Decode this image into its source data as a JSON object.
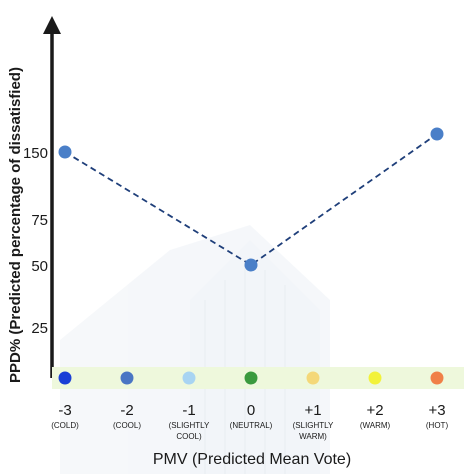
{
  "chart_data": {
    "type": "line",
    "ylabel": "PPD% (Predicted percentage of dissatisfied)",
    "xlabel": "PMV (Predicted Mean Vote)",
    "y_ticks": [
      "150",
      "75",
      "50",
      "25"
    ],
    "x_ticks": [
      {
        "value": "-3",
        "sub1": "(COLD)",
        "sub2": ""
      },
      {
        "value": "-2",
        "sub1": "(COOL)",
        "sub2": ""
      },
      {
        "value": "-1",
        "sub1": "(SLIGHTLY",
        "sub2": "COOL)"
      },
      {
        "value": "0",
        "sub1": "(NEUTRAL)",
        "sub2": ""
      },
      {
        "value": "+1",
        "sub1": "(SLIGHTLY",
        "sub2": "WARM)"
      },
      {
        "value": "+2",
        "sub1": "(WARM)",
        "sub2": ""
      },
      {
        "value": "+3",
        "sub1": "(HOT)",
        "sub2": ""
      }
    ],
    "series": [
      {
        "points": [
          {
            "x": -3,
            "y": 150
          },
          {
            "x": 0,
            "y": 50
          },
          {
            "x": 3,
            "y": 160
          }
        ],
        "color": "#4a7fc8",
        "line_style": "dashed"
      }
    ],
    "scale_dots": [
      {
        "x": -3,
        "color": "#1a3fd6"
      },
      {
        "x": -2,
        "color": "#4a76c4"
      },
      {
        "x": -1,
        "color": "#a8d4f2"
      },
      {
        "x": 0,
        "color": "#3a9a3e"
      },
      {
        "x": 1,
        "color": "#f4d878"
      },
      {
        "x": 2,
        "color": "#f2f23a"
      },
      {
        "x": 3,
        "color": "#f08048"
      }
    ],
    "scale_band_color": "#eef8dc",
    "axis_color": "#1a1a1a"
  }
}
